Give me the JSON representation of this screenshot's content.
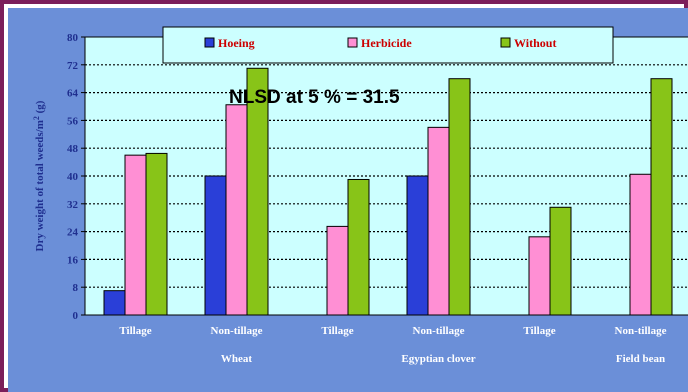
{
  "chart_data": {
    "type": "bar",
    "categories": [
      "Tillage",
      "Non-tillage",
      "Tillage",
      "Non-tillage",
      "Tillage",
      "Non-tillage"
    ],
    "groups": [
      "Wheat",
      "Egyptian clover",
      "Field bean"
    ],
    "series": [
      {
        "name": "Hoeing",
        "color": "#2a3fd8",
        "values": [
          7,
          40,
          null,
          40,
          null,
          null
        ]
      },
      {
        "name": "Herbicide",
        "color": "#ff8fd4",
        "values": [
          46,
          60.5,
          25.5,
          54,
          22.5,
          40.5
        ]
      },
      {
        "name": "Without",
        "color": "#88c418",
        "values": [
          46.5,
          71,
          39,
          68,
          31,
          68
        ]
      }
    ],
    "ylabel": "Dry weight of total weeds/m",
    "ylabel_sup": "2",
    "ylabel_unit": " (g)",
    "ylim": [
      0,
      80
    ],
    "yticks": [
      0,
      8,
      16,
      24,
      32,
      40,
      48,
      56,
      64,
      72,
      80
    ],
    "annotation": "NLSD at 5 % = 31.5",
    "legend_position": "top",
    "grid": true,
    "colors": {
      "outer_background": "#6b8fd8",
      "plot_background": "#ccffff",
      "frame": "#7b1e5a",
      "text": "#1f2f8f"
    }
  }
}
